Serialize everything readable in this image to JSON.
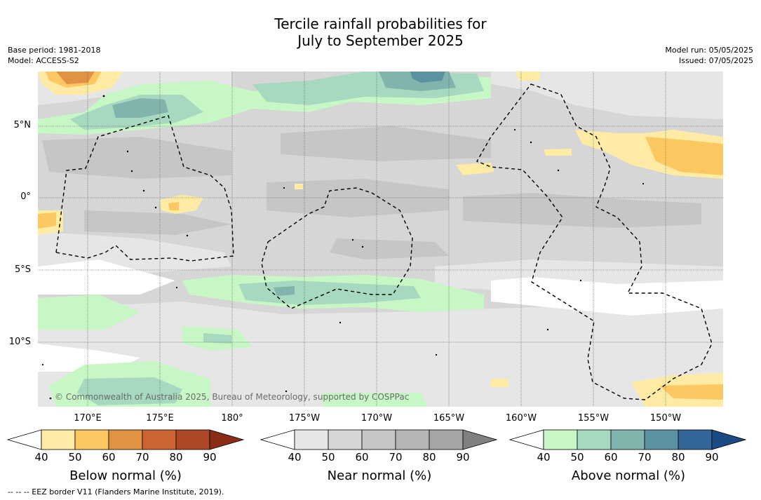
{
  "title": {
    "line1": "Tercile rainfall probabilities for",
    "line2": "July to September 2025"
  },
  "meta": {
    "base_period": "Base period: 1981-2018",
    "model": "Model: ACCESS-S2",
    "model_run": "Model run: 05/05/2025",
    "issued": "Issued: 07/05/2025"
  },
  "map": {
    "lat_labels": [
      "5°N",
      "0°",
      "5°S",
      "10°S"
    ],
    "lon_labels": [
      "170°E",
      "175°E",
      "180°",
      "175°W",
      "170°W",
      "165°W",
      "160°W",
      "155°W",
      "150°W"
    ],
    "credit": "© Commonwealth of Australia 2025, Bureau of Meteorology, supported by COSPPac",
    "land_color": "#f2f2f2",
    "near_normal_base_color": "#d6d6d6"
  },
  "colorbars": [
    {
      "title": "Below normal (%)",
      "ticks": [
        "40",
        "50",
        "60",
        "70",
        "80",
        "90"
      ],
      "colors": [
        "#ffffff",
        "#ffeba3",
        "#fdc862",
        "#e09343",
        "#cd6532",
        "#ad4725",
        "#8b2c17"
      ]
    },
    {
      "title": "Near normal (%)",
      "ticks": [
        "40",
        "50",
        "60",
        "70",
        "80",
        "90"
      ],
      "colors": [
        "#ffffff",
        "#e6e6e6",
        "#d6d6d6",
        "#c6c6c6",
        "#b6b6b6",
        "#a6a6a6",
        "#808080"
      ]
    },
    {
      "title": "Above normal (%)",
      "ticks": [
        "40",
        "50",
        "60",
        "70",
        "80",
        "90"
      ],
      "colors": [
        "#ffffff",
        "#c8f7c6",
        "#a6d9c0",
        "#80b4ad",
        "#5b91a0",
        "#336696",
        "#1c4a85"
      ]
    }
  ],
  "footnote": "--  --  -- EEZ border V11 (Flanders Marine Institute, 2019)."
}
